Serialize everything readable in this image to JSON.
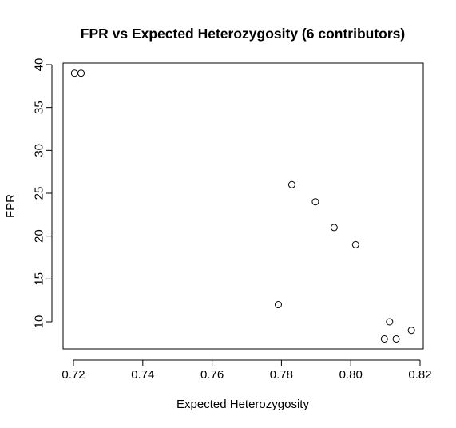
{
  "chart_data": {
    "type": "scatter",
    "title": "FPR vs Expected Heterozygosity (6 contributors)",
    "xlabel": "Expected Heterozygosity",
    "ylabel": "FPR",
    "xlim": [
      0.72,
      0.82
    ],
    "ylim": [
      10,
      40
    ],
    "x_ticks": [
      "0.72",
      "0.74",
      "0.76",
      "0.78",
      "0.80",
      "0.82"
    ],
    "y_ticks": [
      "10",
      "15",
      "20",
      "25",
      "30",
      "35",
      "40"
    ],
    "grid": false,
    "legend": "none",
    "points": [
      {
        "x": 0.7203,
        "y": 39
      },
      {
        "x": 0.7222,
        "y": 39
      },
      {
        "x": 0.7791,
        "y": 12
      },
      {
        "x": 0.783,
        "y": 26
      },
      {
        "x": 0.7898,
        "y": 24
      },
      {
        "x": 0.7952,
        "y": 21
      },
      {
        "x": 0.8014,
        "y": 19
      },
      {
        "x": 0.8097,
        "y": 8
      },
      {
        "x": 0.8112,
        "y": 10
      },
      {
        "x": 0.8131,
        "y": 8
      },
      {
        "x": 0.8175,
        "y": 9
      }
    ]
  }
}
